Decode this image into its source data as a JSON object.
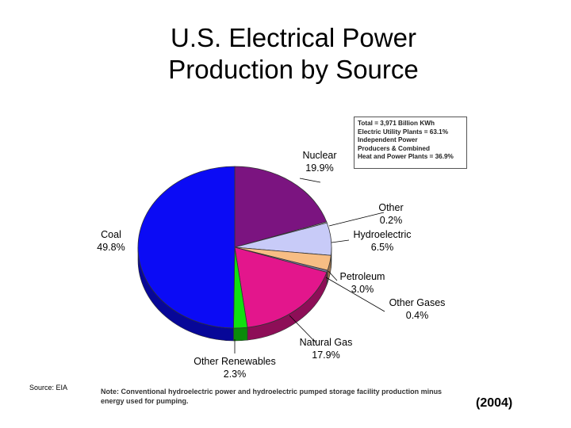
{
  "chart_data": {
    "type": "pie",
    "title_lines": [
      "U.S. Electrical Power",
      "Production by Source"
    ],
    "year": "(2004)",
    "slices": [
      {
        "name": "Nuclear",
        "pct": 19.9,
        "label": "19.9%",
        "color": "#7b1480"
      },
      {
        "name": "Other",
        "pct": 0.2,
        "label": "0.2%",
        "color": "#ffffff"
      },
      {
        "name": "Hydroelectric",
        "pct": 6.5,
        "label": "6.5%",
        "color": "#c8cbf8"
      },
      {
        "name": "Petroleum",
        "pct": 3.0,
        "label": "3.0%",
        "color": "#f7bd84"
      },
      {
        "name": "Other Gases",
        "pct": 0.4,
        "label": "0.4%",
        "color": "#7a7aa0"
      },
      {
        "name": "Natural Gas",
        "pct": 17.9,
        "label": "17.9%",
        "color": "#e3168c"
      },
      {
        "name": "Other Renewables",
        "pct": 2.3,
        "label": "2.3%",
        "color": "#10e010"
      },
      {
        "name": "Coal",
        "pct": 49.8,
        "label": "49.8%",
        "color": "#0b0bf5"
      }
    ],
    "info_box": [
      "Total = 3,971 Billion KWh",
      "Electric Utility Plants = 63.1%",
      "Independent Power",
      "Producers & Combined",
      "Heat and Power Plants = 36.9%"
    ],
    "source": "Source: EIA",
    "note": "Note: Conventional hydroelectric power and hydroelectric pumped storage facility production minus energy used for pumping."
  }
}
